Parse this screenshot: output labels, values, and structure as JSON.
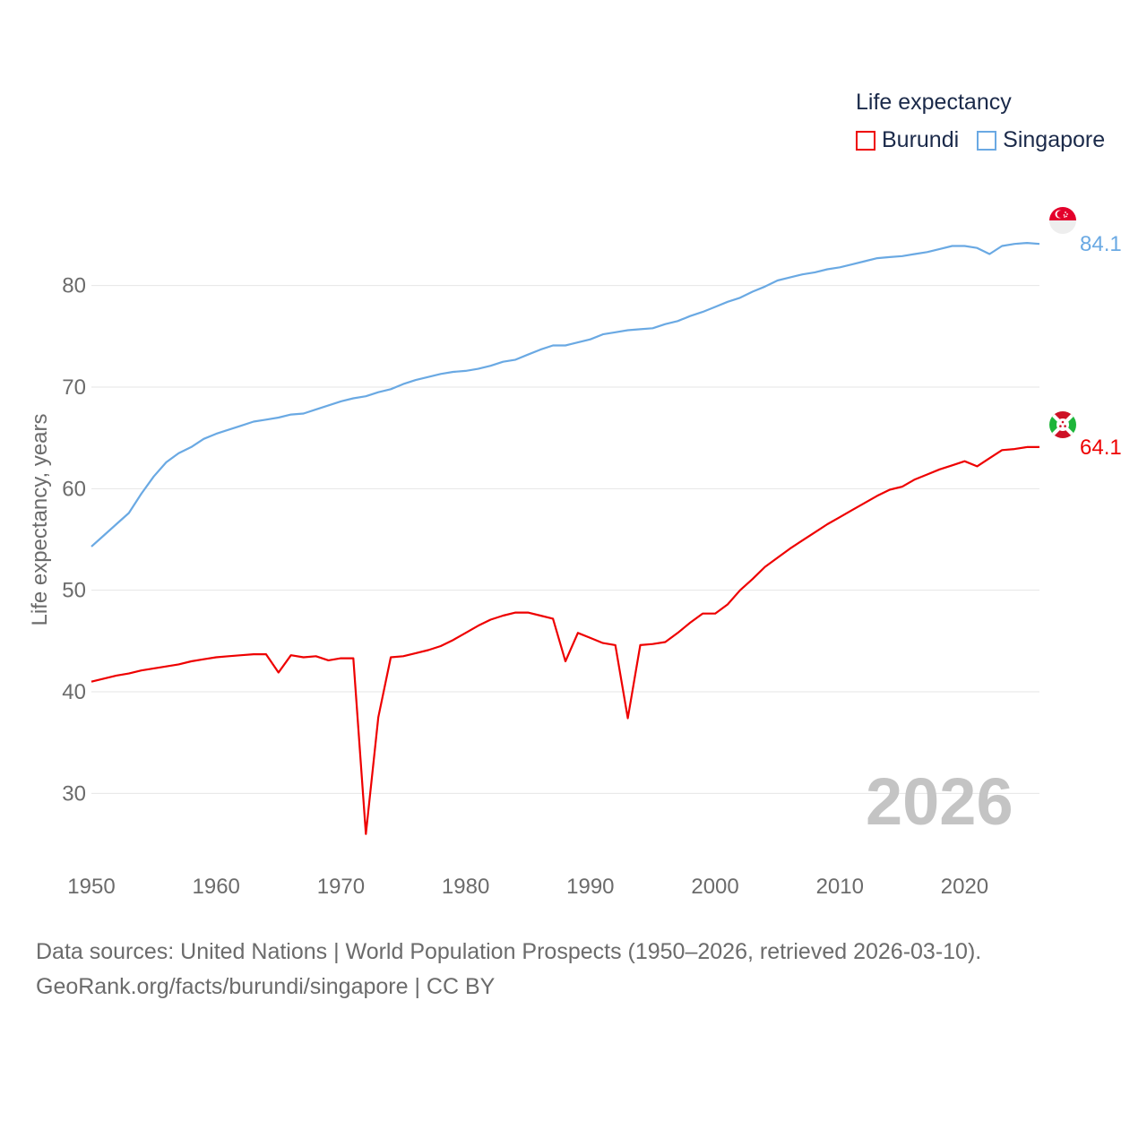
{
  "legend": {
    "title": "Life expectancy",
    "items": [
      {
        "label": "Burundi",
        "color": "#ee0000"
      },
      {
        "label": "Singapore",
        "color": "#6aa9e3"
      }
    ]
  },
  "current_year": "2026",
  "footer": {
    "line1": "Data sources: United Nations | World Population Prospects (1950–2026, retrieved 2026-03-10).",
    "line2": "GeoRank.org/facts/burundi/singapore | CC BY"
  },
  "chart_data": {
    "type": "line",
    "title": "Life expectancy",
    "xlabel": "",
    "ylabel": "Life expectancy, years",
    "xlim": [
      1950,
      2026
    ],
    "ylim": [
      22,
      88
    ],
    "x_ticks": [
      1950,
      1960,
      1970,
      1980,
      1990,
      2000,
      2010,
      2020
    ],
    "y_ticks": [
      30,
      40,
      50,
      60,
      70,
      80
    ],
    "grid": true,
    "legend_position": "top-right",
    "series": [
      {
        "name": "Burundi",
        "color": "#ee0000",
        "end_label": "64.1",
        "points": [
          [
            1950,
            41.0
          ],
          [
            1951,
            41.3
          ],
          [
            1952,
            41.6
          ],
          [
            1953,
            41.8
          ],
          [
            1954,
            42.1
          ],
          [
            1955,
            42.3
          ],
          [
            1956,
            42.5
          ],
          [
            1957,
            42.7
          ],
          [
            1958,
            43.0
          ],
          [
            1959,
            43.2
          ],
          [
            1960,
            43.4
          ],
          [
            1961,
            43.5
          ],
          [
            1962,
            43.6
          ],
          [
            1963,
            43.7
          ],
          [
            1964,
            43.7
          ],
          [
            1965,
            41.9
          ],
          [
            1966,
            43.6
          ],
          [
            1967,
            43.4
          ],
          [
            1968,
            43.5
          ],
          [
            1969,
            43.1
          ],
          [
            1970,
            43.3
          ],
          [
            1971,
            43.3
          ],
          [
            1972,
            26.0
          ],
          [
            1973,
            37.5
          ],
          [
            1974,
            43.4
          ],
          [
            1975,
            43.5
          ],
          [
            1976,
            43.8
          ],
          [
            1977,
            44.1
          ],
          [
            1978,
            44.5
          ],
          [
            1979,
            45.1
          ],
          [
            1980,
            45.8
          ],
          [
            1981,
            46.5
          ],
          [
            1982,
            47.1
          ],
          [
            1983,
            47.5
          ],
          [
            1984,
            47.8
          ],
          [
            1985,
            47.8
          ],
          [
            1986,
            47.5
          ],
          [
            1987,
            47.2
          ],
          [
            1988,
            43.0
          ],
          [
            1989,
            45.8
          ],
          [
            1990,
            45.3
          ],
          [
            1991,
            44.8
          ],
          [
            1992,
            44.6
          ],
          [
            1993,
            37.4
          ],
          [
            1994,
            44.6
          ],
          [
            1995,
            44.7
          ],
          [
            1996,
            44.9
          ],
          [
            1997,
            45.8
          ],
          [
            1998,
            46.8
          ],
          [
            1999,
            47.7
          ],
          [
            2000,
            47.7
          ],
          [
            2001,
            48.6
          ],
          [
            2002,
            50.0
          ],
          [
            2003,
            51.1
          ],
          [
            2004,
            52.3
          ],
          [
            2005,
            53.2
          ],
          [
            2006,
            54.1
          ],
          [
            2007,
            54.9
          ],
          [
            2008,
            55.7
          ],
          [
            2009,
            56.5
          ],
          [
            2010,
            57.2
          ],
          [
            2011,
            57.9
          ],
          [
            2012,
            58.6
          ],
          [
            2013,
            59.3
          ],
          [
            2014,
            59.9
          ],
          [
            2015,
            60.2
          ],
          [
            2016,
            60.9
          ],
          [
            2017,
            61.4
          ],
          [
            2018,
            61.9
          ],
          [
            2019,
            62.3
          ],
          [
            2020,
            62.7
          ],
          [
            2021,
            62.2
          ],
          [
            2022,
            63.0
          ],
          [
            2023,
            63.8
          ],
          [
            2024,
            63.9
          ],
          [
            2025,
            64.1
          ],
          [
            2026,
            64.1
          ]
        ]
      },
      {
        "name": "Singapore",
        "color": "#6aa9e3",
        "end_label": "84.1",
        "points": [
          [
            1950,
            54.3
          ],
          [
            1951,
            55.4
          ],
          [
            1952,
            56.5
          ],
          [
            1953,
            57.6
          ],
          [
            1954,
            59.5
          ],
          [
            1955,
            61.2
          ],
          [
            1956,
            62.6
          ],
          [
            1957,
            63.5
          ],
          [
            1958,
            64.1
          ],
          [
            1959,
            64.9
          ],
          [
            1960,
            65.4
          ],
          [
            1961,
            65.8
          ],
          [
            1962,
            66.2
          ],
          [
            1963,
            66.6
          ],
          [
            1964,
            66.8
          ],
          [
            1965,
            67.0
          ],
          [
            1966,
            67.3
          ],
          [
            1967,
            67.4
          ],
          [
            1968,
            67.8
          ],
          [
            1969,
            68.2
          ],
          [
            1970,
            68.6
          ],
          [
            1971,
            68.9
          ],
          [
            1972,
            69.1
          ],
          [
            1973,
            69.5
          ],
          [
            1974,
            69.8
          ],
          [
            1975,
            70.3
          ],
          [
            1976,
            70.7
          ],
          [
            1977,
            71.0
          ],
          [
            1978,
            71.3
          ],
          [
            1979,
            71.5
          ],
          [
            1980,
            71.6
          ],
          [
            1981,
            71.8
          ],
          [
            1982,
            72.1
          ],
          [
            1983,
            72.5
          ],
          [
            1984,
            72.7
          ],
          [
            1985,
            73.2
          ],
          [
            1986,
            73.7
          ],
          [
            1987,
            74.1
          ],
          [
            1988,
            74.1
          ],
          [
            1989,
            74.4
          ],
          [
            1990,
            74.7
          ],
          [
            1991,
            75.2
          ],
          [
            1992,
            75.4
          ],
          [
            1993,
            75.6
          ],
          [
            1994,
            75.7
          ],
          [
            1995,
            75.8
          ],
          [
            1996,
            76.2
          ],
          [
            1997,
            76.5
          ],
          [
            1998,
            77.0
          ],
          [
            1999,
            77.4
          ],
          [
            2000,
            77.9
          ],
          [
            2001,
            78.4
          ],
          [
            2002,
            78.8
          ],
          [
            2003,
            79.4
          ],
          [
            2004,
            79.9
          ],
          [
            2005,
            80.5
          ],
          [
            2006,
            80.8
          ],
          [
            2007,
            81.1
          ],
          [
            2008,
            81.3
          ],
          [
            2009,
            81.6
          ],
          [
            2010,
            81.8
          ],
          [
            2011,
            82.1
          ],
          [
            2012,
            82.4
          ],
          [
            2013,
            82.7
          ],
          [
            2014,
            82.8
          ],
          [
            2015,
            82.9
          ],
          [
            2016,
            83.1
          ],
          [
            2017,
            83.3
          ],
          [
            2018,
            83.6
          ],
          [
            2019,
            83.9
          ],
          [
            2020,
            83.9
          ],
          [
            2021,
            83.7
          ],
          [
            2022,
            83.1
          ],
          [
            2023,
            83.9
          ],
          [
            2024,
            84.1
          ],
          [
            2025,
            84.2
          ],
          [
            2026,
            84.1
          ]
        ]
      }
    ]
  }
}
